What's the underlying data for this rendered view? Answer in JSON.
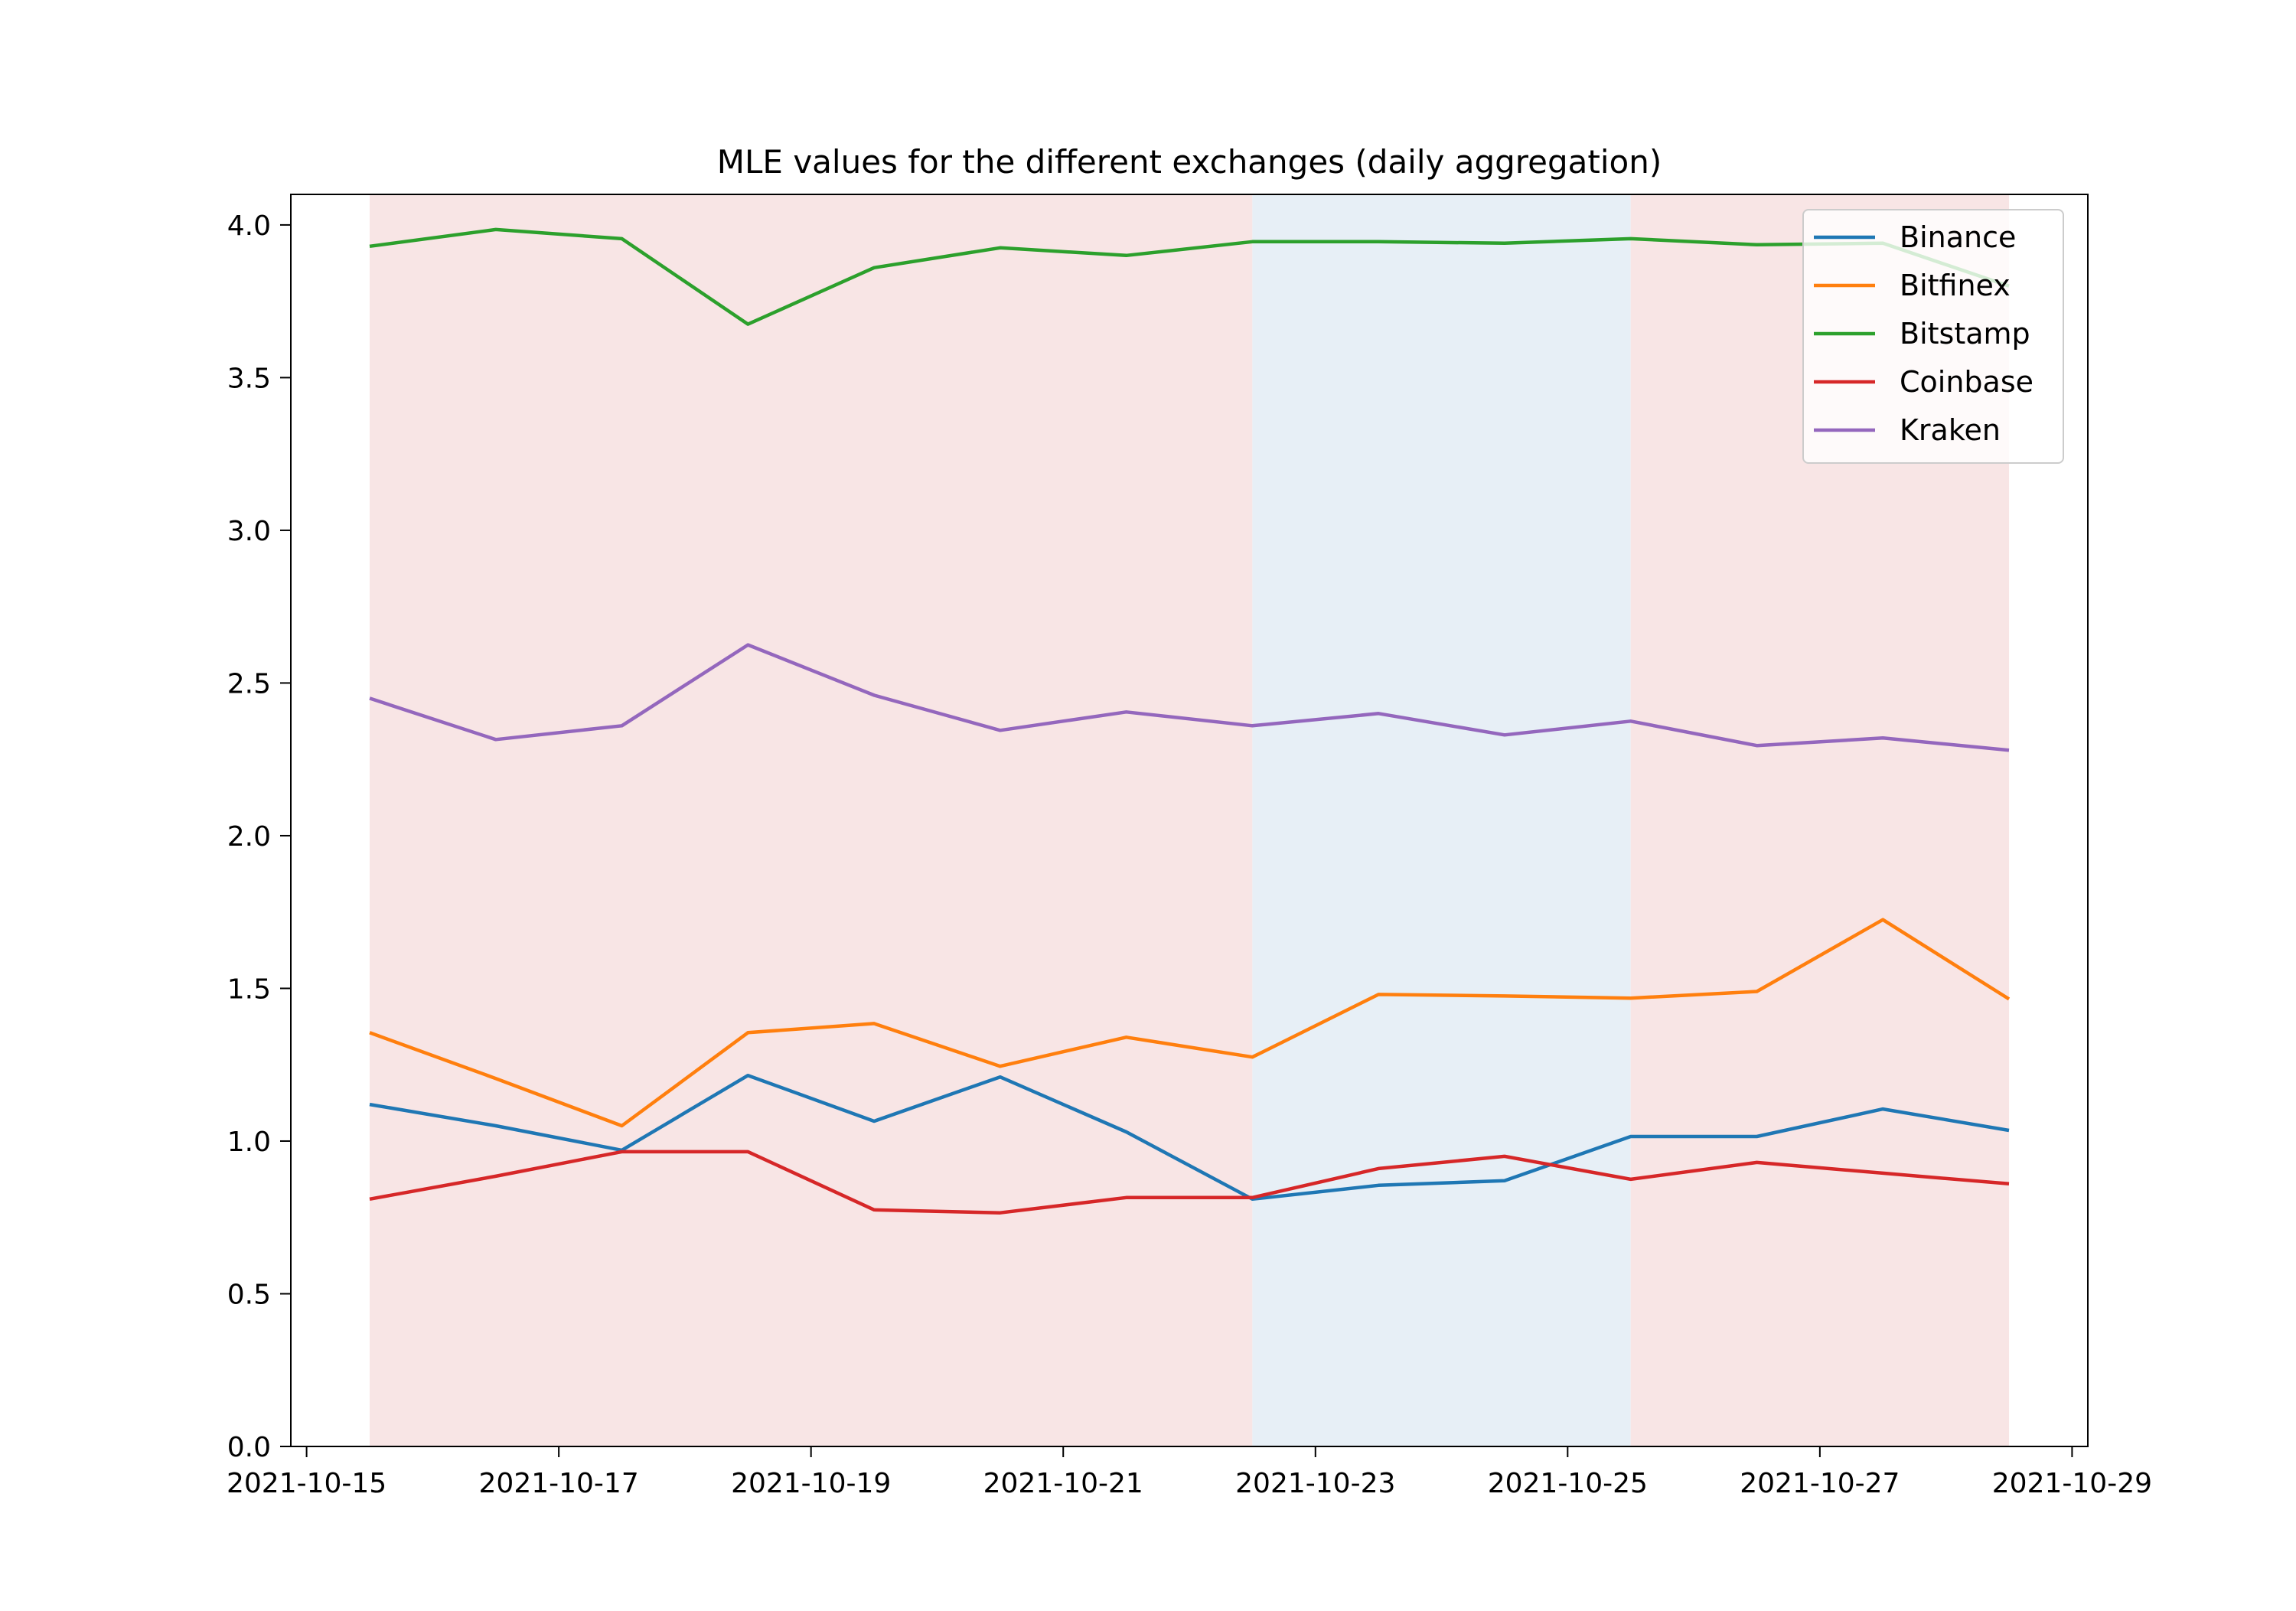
{
  "chart_data": {
    "type": "line",
    "title": "MLE values for the different exchanges (daily aggregation)",
    "xlabel": "",
    "ylabel": "",
    "x": [
      "2021-10-15T12:00",
      "2021-10-16T12:00",
      "2021-10-17T12:00",
      "2021-10-18T12:00",
      "2021-10-19T12:00",
      "2021-10-20T12:00",
      "2021-10-21T12:00",
      "2021-10-22T12:00",
      "2021-10-23T12:00",
      "2021-10-24T12:00",
      "2021-10-25T12:00",
      "2021-10-26T12:00",
      "2021-10-27T12:00",
      "2021-10-28T12:00"
    ],
    "xlim": [
      "2021-10-14T21:00",
      "2021-10-29T03:00"
    ],
    "ylim": [
      0,
      4.1
    ],
    "x_ticks": [
      "2021-10-15",
      "2021-10-17",
      "2021-10-19",
      "2021-10-21",
      "2021-10-23",
      "2021-10-25",
      "2021-10-27",
      "2021-10-29"
    ],
    "y_ticks": [
      "0.0",
      "0.5",
      "1.0",
      "1.5",
      "2.0",
      "2.5",
      "3.0",
      "3.5",
      "4.0"
    ],
    "grid": false,
    "legend_position": "top-right",
    "shaded_regions": [
      {
        "start": "2021-10-15T12:00",
        "end": "2021-10-22T12:00",
        "color": "#f8e5e5"
      },
      {
        "start": "2021-10-22T12:00",
        "end": "2021-10-25T12:00",
        "color": "#e7eff6"
      },
      {
        "start": "2021-10-25T12:00",
        "end": "2021-10-28T12:00",
        "color": "#f8e5e5"
      }
    ],
    "series": [
      {
        "name": "Binance",
        "color": "#1f77b4",
        "values": [
          1.12,
          1.05,
          0.97,
          1.215,
          1.065,
          1.21,
          1.03,
          0.81,
          0.855,
          0.87,
          1.015,
          1.015,
          1.105,
          1.035
        ]
      },
      {
        "name": "Bitfinex",
        "color": "#ff7f0e",
        "values": [
          1.355,
          1.205,
          1.05,
          1.355,
          1.385,
          1.245,
          1.34,
          1.275,
          1.48,
          1.475,
          1.468,
          1.49,
          1.725,
          1.465
        ]
      },
      {
        "name": "Bitstamp",
        "color": "#2ca02c",
        "values": [
          3.93,
          3.985,
          3.955,
          3.675,
          3.86,
          3.925,
          3.9,
          3.945,
          3.945,
          3.94,
          3.955,
          3.935,
          3.94,
          3.8
        ]
      },
      {
        "name": "Coinbase",
        "color": "#d62728",
        "values": [
          0.81,
          0.885,
          0.965,
          0.965,
          0.775,
          0.765,
          0.815,
          0.815,
          0.91,
          0.95,
          0.875,
          0.93,
          0.895,
          0.86
        ]
      },
      {
        "name": "Kraken",
        "color": "#9467bd",
        "values": [
          2.45,
          2.315,
          2.36,
          2.625,
          2.46,
          2.345,
          2.405,
          2.36,
          2.4,
          2.33,
          2.375,
          2.295,
          2.32,
          2.28
        ]
      }
    ]
  }
}
